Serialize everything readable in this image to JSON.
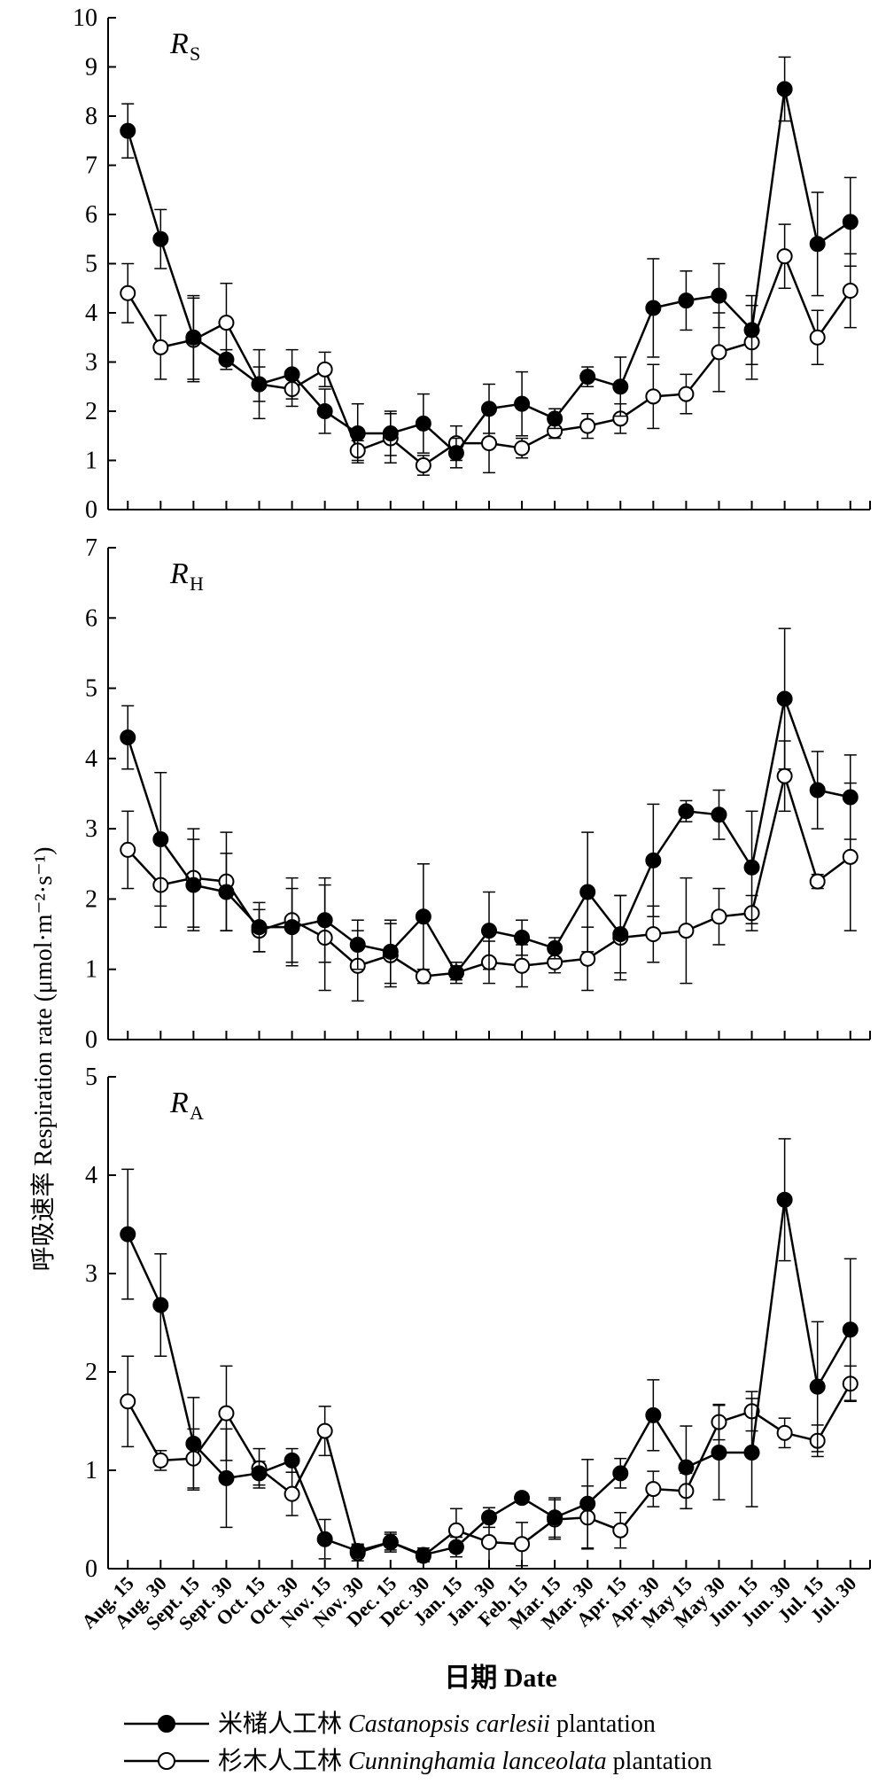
{
  "chart_data": [
    {
      "type": "line",
      "panel_label_main": "R",
      "panel_label_sub": "S",
      "categories": [
        "Aug. 15",
        "Aug. 30",
        "Sept. 15",
        "Sept. 30",
        "Oct. 15",
        "Oct. 30",
        "Nov. 15",
        "Nov. 30",
        "Dec. 15",
        "Dec. 30",
        "Jan. 15",
        "Jan. 30",
        "Feb. 15",
        "Mar. 15",
        "Mar. 30",
        "Apr. 15",
        "Apr. 30",
        "May 15",
        "May 30",
        "Jun. 15",
        "Jun. 30",
        "Jul. 15",
        "Jul. 30"
      ],
      "ylim": [
        0,
        10
      ],
      "yticks": [
        "0",
        "1",
        "2",
        "3",
        "4",
        "5",
        "6",
        "7",
        "8",
        "9",
        "10"
      ],
      "series": [
        {
          "name": "米槠人工林 Castanopsis carlesii plantation",
          "marker": "filled",
          "values": [
            7.7,
            5.5,
            3.5,
            3.05,
            2.55,
            2.75,
            2.0,
            1.55,
            1.55,
            1.75,
            1.15,
            2.05,
            2.15,
            1.85,
            2.7,
            2.5,
            4.1,
            4.25,
            4.35,
            3.65,
            8.55,
            5.4,
            5.85
          ],
          "errors": [
            0.55,
            0.6,
            0.85,
            0.2,
            0.35,
            0.5,
            0.45,
            0.6,
            0.45,
            0.6,
            0.3,
            0.5,
            0.65,
            0.2,
            0.2,
            0.6,
            1.0,
            0.6,
            0.65,
            0.7,
            0.65,
            1.05,
            0.9
          ]
        },
        {
          "name": "杉木人工林 Cunninghamia lanceolata plantation",
          "marker": "open",
          "values": [
            4.4,
            3.3,
            3.45,
            3.8,
            2.55,
            2.45,
            2.85,
            1.2,
            1.45,
            0.9,
            1.35,
            1.35,
            1.25,
            1.6,
            1.7,
            1.85,
            2.3,
            2.35,
            3.2,
            3.4,
            5.15,
            3.5,
            4.45
          ],
          "errors": [
            0.6,
            0.65,
            0.85,
            0.8,
            0.7,
            0.35,
            0.35,
            0.2,
            0.5,
            0.2,
            0.35,
            0.6,
            0.2,
            0.15,
            0.25,
            0.3,
            0.65,
            0.4,
            0.8,
            0.75,
            0.65,
            0.55,
            0.75
          ]
        }
      ]
    },
    {
      "type": "line",
      "panel_label_main": "R",
      "panel_label_sub": "H",
      "categories": [
        "Aug. 15",
        "Aug. 30",
        "Sept. 15",
        "Sept. 30",
        "Oct. 15",
        "Oct. 30",
        "Nov. 15",
        "Nov. 30",
        "Dec. 15",
        "Dec. 30",
        "Jan. 15",
        "Jan. 30",
        "Feb. 15",
        "Mar. 15",
        "Mar. 30",
        "Apr. 15",
        "Apr. 30",
        "May 15",
        "May 30",
        "Jun. 15",
        "Jun. 30",
        "Jul. 15",
        "Jul. 30"
      ],
      "ylim": [
        0,
        7
      ],
      "yticks": [
        "0",
        "1",
        "2",
        "3",
        "4",
        "5",
        "6",
        "7"
      ],
      "series": [
        {
          "name": "米槠人工林 Castanopsis carlesii plantation",
          "marker": "filled",
          "values": [
            4.3,
            2.85,
            2.2,
            2.1,
            1.6,
            1.6,
            1.7,
            1.35,
            1.25,
            1.75,
            0.95,
            1.55,
            1.45,
            1.3,
            2.1,
            1.5,
            2.55,
            3.25,
            3.2,
            2.45,
            4.85,
            3.55,
            3.45
          ],
          "errors": [
            0.45,
            0.95,
            0.65,
            0.55,
            0.35,
            0.55,
            0.6,
            0.35,
            0.45,
            0.75,
            0.15,
            0.55,
            0.25,
            0.15,
            0.85,
            0.55,
            0.8,
            0.15,
            0.35,
            0.8,
            1.0,
            0.55,
            0.6
          ]
        },
        {
          "name": "杉木人工林 Cunninghamia lanceolata plantation",
          "marker": "open",
          "values": [
            2.7,
            2.2,
            2.3,
            2.25,
            1.55,
            1.7,
            1.45,
            1.05,
            1.2,
            0.9,
            0.95,
            1.1,
            1.05,
            1.1,
            1.15,
            1.45,
            1.5,
            1.55,
            1.75,
            1.8,
            3.75,
            2.25,
            2.6
          ],
          "errors": [
            0.55,
            0.6,
            0.7,
            0.7,
            0.3,
            0.6,
            0.75,
            0.5,
            0.45,
            0.1,
            0.1,
            0.3,
            0.3,
            0.15,
            0.45,
            0.6,
            0.4,
            0.75,
            0.4,
            0.25,
            0.5,
            0.1,
            1.05
          ]
        }
      ]
    },
    {
      "type": "line",
      "panel_label_main": "R",
      "panel_label_sub": "A",
      "categories": [
        "Aug. 15",
        "Aug. 30",
        "Sept. 15",
        "Sept. 30",
        "Oct. 15",
        "Oct. 30",
        "Nov. 15",
        "Nov. 30",
        "Dec. 15",
        "Dec. 30",
        "Jan. 15",
        "Jan. 30",
        "Feb. 15",
        "Mar. 15",
        "Mar. 30",
        "Apr. 15",
        "Apr. 30",
        "May 15",
        "May 30",
        "Jun. 15",
        "Jun. 30",
        "Jul. 15",
        "Jul. 30"
      ],
      "ylim": [
        0,
        5
      ],
      "yticks": [
        "0",
        "1",
        "2",
        "3",
        "4",
        "5"
      ],
      "series": [
        {
          "name": "米槠人工林 Castanopsis carlesii plantation",
          "marker": "filled",
          "values": [
            3.4,
            2.68,
            1.27,
            0.92,
            0.97,
            1.1,
            0.3,
            0.18,
            0.27,
            0.14,
            0.22,
            0.52,
            0.72,
            0.52,
            0.66,
            0.97,
            1.56,
            1.03,
            1.18,
            1.18,
            3.75,
            1.85,
            2.43
          ],
          "errors": [
            0.66,
            0.52,
            0.47,
            0.5,
            0.12,
            0.12,
            0.2,
            0.07,
            0.1,
            0.07,
            0.1,
            0.1,
            0.05,
            0.2,
            0.45,
            0.15,
            0.36,
            0.42,
            0.48,
            0.55,
            0.62,
            0.66,
            0.72
          ]
        },
        {
          "name": "杉木人工林 Cunninghamia lanceolata plantation",
          "marker": "open",
          "values": [
            1.7,
            1.1,
            1.12,
            1.58,
            1.02,
            0.76,
            1.4,
            0.16,
            0.27,
            0.13,
            0.39,
            0.27,
            0.25,
            0.5,
            0.52,
            0.39,
            0.81,
            0.79,
            1.49,
            1.6,
            1.38,
            1.3,
            1.88
          ],
          "errors": [
            0.46,
            0.1,
            0.3,
            0.48,
            0.2,
            0.22,
            0.25,
            0.08,
            0.08,
            0.06,
            0.22,
            0.3,
            0.22,
            0.2,
            0.32,
            0.18,
            0.18,
            0.18,
            0.18,
            0.2,
            0.15,
            0.16,
            0.18
          ]
        }
      ]
    }
  ],
  "y_axis_label": "呼吸速率 Respiration rate (μmol·m⁻²·s⁻¹)",
  "x_axis_label": "日期 Date",
  "legend": [
    {
      "marker": "filled",
      "zh": "米槠人工林 ",
      "latin": "Castanopsis carlesii",
      "suffix": " plantation"
    },
    {
      "marker": "open",
      "zh": "杉木人工林 ",
      "latin": "Cunninghamia lanceolata",
      "suffix": " plantation"
    }
  ]
}
